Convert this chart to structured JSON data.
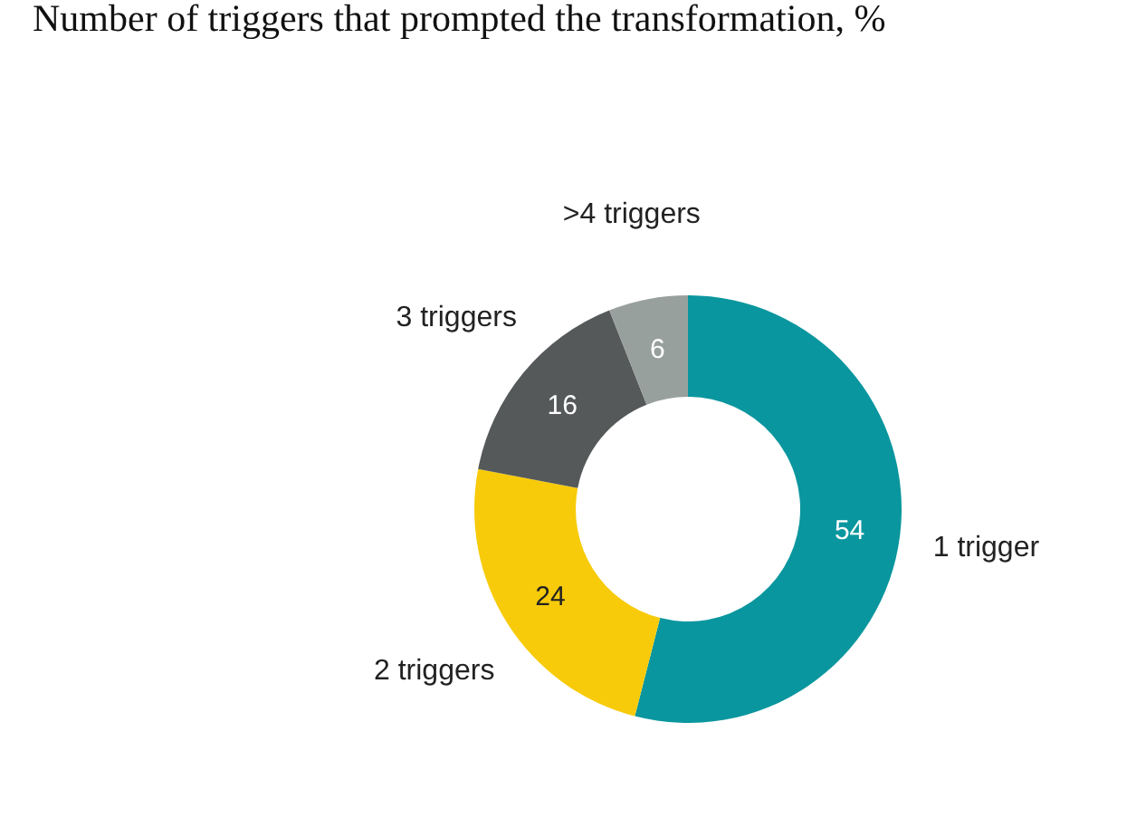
{
  "chart_data": {
    "type": "donut",
    "title": "Number of triggers that prompted the transformation, %",
    "categories": [
      "1 trigger",
      "2 triggers",
      "3 triggers",
      ">4 triggers"
    ],
    "values": [
      54,
      24,
      16,
      6
    ],
    "colors": [
      "#0a969e",
      "#f7cb0a",
      "#56595a",
      "#98a09e"
    ],
    "data_labels": true,
    "legend": false
  }
}
